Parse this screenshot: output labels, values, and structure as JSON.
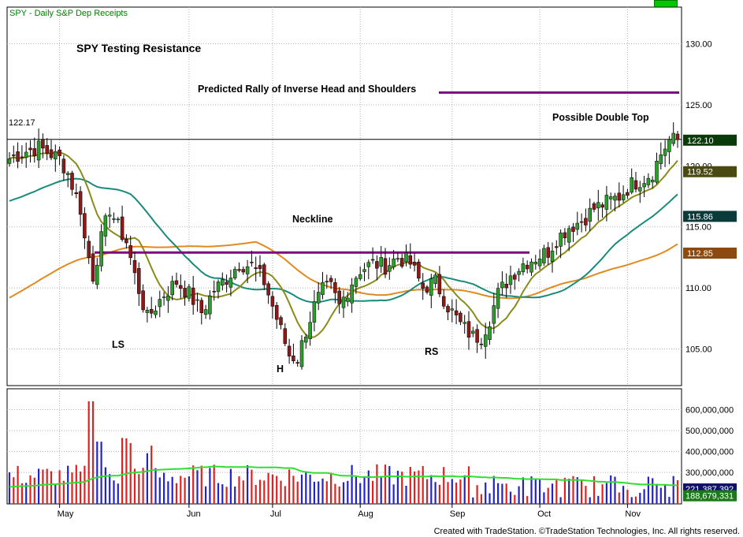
{
  "header": {
    "symbol_line": "SPY - Daily   S&P Dep Receipts"
  },
  "footer": {
    "credit": "Created with TradeStation. ©TradeStation Technologies, Inc. All rights reserved."
  },
  "colors": {
    "up": "#2d9e2d",
    "down": "#8b1a1a",
    "ma_short": "#8b8b1a",
    "ma_mid": "#1a8b7a",
    "ma_long": "#e08a20",
    "volume_ma": "#33dd33",
    "annotation_purple": "#800080",
    "vol_up": "#2323c8",
    "vol_down": "#dd2222"
  },
  "chart_data": {
    "type": "candlestick",
    "title": "SPY Testing Resistance",
    "price_axis": {
      "ylim": [
        102.0,
        133.0
      ],
      "ticks": [
        "130.00",
        "125.00",
        "120.00",
        "115.00",
        "110.00",
        "105.00"
      ],
      "tick_values": [
        130,
        125,
        120,
        115,
        110,
        105
      ]
    },
    "x_labels": [
      "May",
      "Jun",
      "Jul",
      "Aug",
      "Sep",
      "Oct",
      "Nov"
    ],
    "x_label_index": [
      12,
      43,
      63,
      84,
      106,
      127,
      148
    ],
    "n_bars": 161,
    "price_line": {
      "label": "122.17",
      "value": 122.17
    },
    "last_value_tags": [
      {
        "label": "122.10",
        "value": 122.1,
        "color": "#0a3a0a"
      },
      {
        "label": "119.52",
        "value": 119.52,
        "color": "#4a4a10"
      },
      {
        "label": "115.86",
        "value": 115.86,
        "color": "#0a3a3a"
      },
      {
        "label": "112.85",
        "value": 112.85,
        "color": "#8a4a10"
      }
    ],
    "annotations": [
      {
        "text": "Predicted Rally of Inverse Head and Shoulders",
        "line_value": 126.0
      },
      {
        "text": "Neckline",
        "line_value": 112.9
      },
      {
        "text": "Possible Double Top"
      },
      {
        "text": "LS"
      },
      {
        "text": "H"
      },
      {
        "text": "RS"
      }
    ],
    "anchors": [
      [
        0,
        120.6
      ],
      [
        4,
        121.2
      ],
      [
        7,
        121.5
      ],
      [
        12,
        120.6
      ],
      [
        14,
        119.4
      ],
      [
        17,
        116.5
      ],
      [
        18,
        114.0
      ],
      [
        20,
        111.0
      ],
      [
        22,
        114.0
      ],
      [
        24,
        116.5
      ],
      [
        26,
        115.0
      ],
      [
        28,
        113.8
      ],
      [
        30,
        111.0
      ],
      [
        33,
        107.5
      ],
      [
        37,
        109.5
      ],
      [
        40,
        110.5
      ],
      [
        43,
        109.5
      ],
      [
        46,
        108.0
      ],
      [
        49,
        109.8
      ],
      [
        52,
        110.8
      ],
      [
        55,
        112.0
      ],
      [
        58,
        111.8
      ],
      [
        61,
        110.5
      ],
      [
        63,
        108.5
      ],
      [
        65,
        106.5
      ],
      [
        67,
        104.5
      ],
      [
        69,
        104.2
      ],
      [
        71,
        106.5
      ],
      [
        73,
        108.5
      ],
      [
        75,
        109.8
      ],
      [
        77,
        110.0
      ],
      [
        79,
        108.5
      ],
      [
        82,
        110.5
      ],
      [
        84,
        111.5
      ],
      [
        87,
        112.0
      ],
      [
        90,
        111.8
      ],
      [
        93,
        112.5
      ],
      [
        96,
        112.0
      ],
      [
        99,
        110.0
      ],
      [
        102,
        110.5
      ],
      [
        105,
        108.5
      ],
      [
        108,
        107.0
      ],
      [
        111,
        106.0
      ],
      [
        113,
        106.0
      ],
      [
        115,
        107.5
      ],
      [
        117,
        109.5
      ],
      [
        120,
        111.0
      ],
      [
        123,
        112.0
      ],
      [
        126,
        112.5
      ],
      [
        129,
        113.0
      ],
      [
        131,
        114.0
      ],
      [
        134,
        115.0
      ],
      [
        137,
        115.5
      ],
      [
        140,
        116.5
      ],
      [
        143,
        117.0
      ],
      [
        146,
        117.5
      ],
      [
        149,
        118.5
      ],
      [
        152,
        119.0
      ],
      [
        154,
        119.5
      ],
      [
        156,
        121.0
      ],
      [
        158,
        122.1
      ],
      [
        160,
        122.1
      ]
    ],
    "volume_axis": {
      "ylim": [
        150000000,
        700000000
      ],
      "ticks": [
        "600,000,000",
        "500,000,000",
        "400,000,000",
        "300,000,000"
      ],
      "tick_values": [
        600000000,
        500000000,
        400000000,
        300000000
      ]
    },
    "volume_tags": [
      {
        "label": "221,387,392",
        "value": 221387392
      },
      {
        "label": "188,679,331",
        "value": 188679331
      }
    ]
  }
}
